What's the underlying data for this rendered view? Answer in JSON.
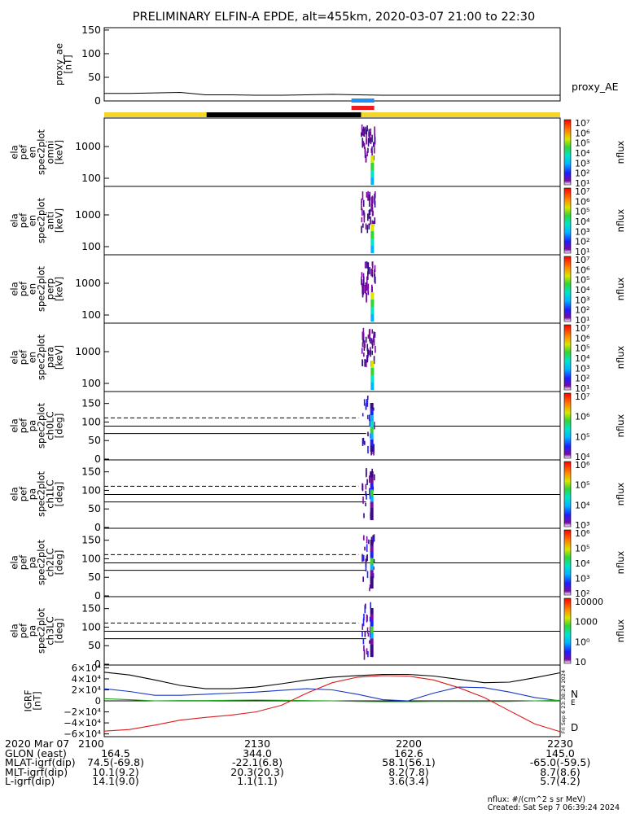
{
  "title": "PRELIMINARY ELFIN-A EPDE, alt=455km, 2020-03-07 21:00 to 22:30",
  "colors": {
    "yellow": "#f4d52a",
    "black": "#000000",
    "blue_bar": "#1e8ff0",
    "red_bar": "#ef1b1b",
    "igrf_n": "#1a35c8",
    "igrf_e": "#1ea31e",
    "igrf_d": "#dc1a1a",
    "igrf_total": "#000000"
  },
  "status_bars": {
    "segments": [
      {
        "from_min": 0,
        "to_min": 20.2,
        "color": "yellow"
      },
      {
        "from_min": 20.2,
        "to_min": 50.7,
        "color": "black"
      },
      {
        "from_min": 50.7,
        "to_min": 90,
        "color": "yellow"
      }
    ],
    "blue": {
      "from_min": 48.8,
      "to_min": 53.3
    },
    "red": {
      "from_min": 48.8,
      "to_min": 53.3
    }
  },
  "colorbar_labels": {
    "pef_en": [
      "10^7",
      "10^6",
      "10^5",
      "10^4",
      "10^3",
      "10^2",
      "10^1"
    ],
    "pef_pa0": [
      "10^7",
      "10^6",
      "10^5",
      "10^4"
    ],
    "pef_pa1": [
      "10^6",
      "10^5",
      "10^4",
      "10^3"
    ],
    "pef_pa2": [
      "10^6",
      "10^5",
      "10^4",
      "10^3",
      "10^2"
    ],
    "pef_pa3": [
      "10000",
      "1000",
      "100",
      "10"
    ]
  },
  "chart_data": [
    {
      "type": "line",
      "panel": "proxy_ae",
      "ylabel": "proxy_ae\n[nT]",
      "legend": "proxy_AE",
      "yticks": [
        "150",
        "100",
        "50",
        "0"
      ],
      "ylim": [
        0,
        155
      ],
      "x_min": [
        0,
        5,
        10,
        15,
        20,
        25,
        30,
        35,
        40,
        45,
        50,
        55,
        60,
        65,
        70,
        75,
        80,
        85,
        90
      ],
      "values": [
        16,
        16,
        17,
        18,
        13,
        13,
        12,
        12,
        13,
        14,
        13,
        12,
        12,
        12,
        12,
        12,
        12,
        12,
        12
      ]
    },
    {
      "type": "heatmap",
      "panel": "ela_pef_en_spec2plot_omni",
      "ylabel": "ela\npef\nen\nspec2plot\nomni\n[keV]",
      "yticks": [
        "1000",
        "100"
      ],
      "colorbar_title": "nflux",
      "event_window_min": [
        50.4,
        53.4
      ]
    },
    {
      "type": "heatmap",
      "panel": "ela_pef_en_spec2plot_anti",
      "ylabel": "ela\npef\nen\nspec2plot\nanti\n[keV]",
      "yticks": [
        "1000",
        "100"
      ],
      "colorbar_title": "nflux",
      "event_window_min": [
        50.4,
        53.4
      ]
    },
    {
      "type": "heatmap",
      "panel": "ela_pef_en_spec2plot_perp",
      "ylabel": "ela\npef\nen\nspec2plot\nperp\n[keV]",
      "yticks": [
        "1000",
        "100"
      ],
      "colorbar_title": "nflux",
      "event_window_min": [
        50.4,
        53.4
      ]
    },
    {
      "type": "heatmap",
      "panel": "ela_pef_en_spec2plot_para",
      "ylabel": "ela\npef\nen\nspec2plot\npara\n[keV]",
      "yticks": [
        "1000",
        "100"
      ],
      "colorbar_title": "nflux",
      "event_window_min": [
        50.4,
        53.4
      ]
    },
    {
      "type": "heatmap",
      "panel": "ela_pef_pa_spec2plot_ch0LC",
      "ylabel": "ela\npef\npa\nspec2plot\nch0LC\n[deg]",
      "yticks": [
        "150",
        "100",
        "50",
        "0"
      ],
      "ylim": [
        0,
        180
      ],
      "colorbar_title": "nflux",
      "lc_dashed_deg": 111,
      "lc_solid_upper_deg": 89,
      "lc_solid_lower_deg": 69
    },
    {
      "type": "heatmap",
      "panel": "ela_pef_pa_spec2plot_ch1LC",
      "ylabel": "ela\npef\npa\nspec2plot\nch1LC\n[deg]",
      "yticks": [
        "150",
        "100",
        "50",
        "0"
      ],
      "ylim": [
        0,
        180
      ],
      "colorbar_title": "nflux",
      "lc_dashed_deg": 111,
      "lc_solid_upper_deg": 89,
      "lc_solid_lower_deg": 69
    },
    {
      "type": "heatmap",
      "panel": "ela_pef_pa_spec2plot_ch2LC",
      "ylabel": "ela\npef\npa\nspec2plot\nch2LC\n[deg]",
      "yticks": [
        "150",
        "100",
        "50",
        "0"
      ],
      "ylim": [
        0,
        180
      ],
      "colorbar_title": "nflux",
      "lc_dashed_deg": 111,
      "lc_solid_upper_deg": 89,
      "lc_solid_lower_deg": 69
    },
    {
      "type": "heatmap",
      "panel": "ela_pef_pa_spec2plot_ch3LC",
      "ylabel": "ela\npef\npa\nspec2plot\nch3LC\n[deg]",
      "yticks": [
        "150",
        "100",
        "50",
        "0"
      ],
      "ylim": [
        0,
        180
      ],
      "colorbar_title": "nflux",
      "lc_dashed_deg": 111,
      "lc_solid_upper_deg": 89,
      "lc_solid_lower_deg": 69
    },
    {
      "type": "line",
      "panel": "IGRF",
      "ylabel": "IGRF\n[nT]",
      "yticks": [
        "6×10⁴",
        "4×10⁴",
        "2×10⁴",
        "0",
        "−2×10⁴",
        "−4×10⁴",
        "−6×10⁴"
      ],
      "ylim": [
        -65000,
        65000
      ],
      "x_min": [
        0,
        5,
        10,
        15,
        20,
        25,
        30,
        35,
        40,
        45,
        50,
        55,
        60,
        65,
        70,
        75,
        80,
        85,
        90
      ],
      "series": [
        {
          "name": "total",
          "color": "igrf_total",
          "values": [
            52000,
            47000,
            38000,
            28000,
            22000,
            22000,
            25000,
            31000,
            38000,
            43000,
            46000,
            48000,
            48000,
            45000,
            39000,
            33000,
            34000,
            42000,
            51000
          ]
        },
        {
          "name": "N",
          "color": "igrf_n",
          "values": [
            22000,
            17000,
            10000,
            10000,
            12000,
            14000,
            16000,
            19000,
            22000,
            20000,
            12000,
            2000,
            0,
            14000,
            25000,
            24000,
            16000,
            6000,
            0
          ]
        },
        {
          "name": "E",
          "color": "igrf_e",
          "values": [
            4000,
            2000,
            0,
            500,
            500,
            1000,
            1500,
            1000,
            500,
            0,
            -1000,
            -1500,
            -1500,
            -1000,
            -1000,
            -1000,
            -1000,
            0,
            1000
          ]
        },
        {
          "name": "D",
          "color": "igrf_d",
          "values": [
            -55000,
            -52000,
            -44000,
            -35000,
            -30000,
            -26000,
            -20000,
            -8000,
            14000,
            33000,
            43000,
            46000,
            45000,
            38000,
            24000,
            6000,
            -18000,
            -42000,
            -56000
          ]
        }
      ],
      "right_labels": [
        "N",
        "E",
        "D"
      ]
    }
  ],
  "time_axis": {
    "row_label": "2020 Mar 07",
    "ticks": [
      "2100",
      "2130",
      "2200",
      "2230"
    ],
    "tick_min": [
      0,
      30,
      60,
      90
    ]
  },
  "orbit_table": [
    {
      "label": "GLON (east)",
      "values": [
        "164.5",
        "344.0",
        "162.6",
        "145.0"
      ]
    },
    {
      "label": "MLAT-igrf(dip)",
      "values": [
        "74.5(-69.8)",
        "-22.1(6.8)",
        "58.1(56.1)",
        "-65.0(-59.5)"
      ]
    },
    {
      "label": "MLT-igrf(dip)",
      "values": "10.1(9.2)|20.3(20.3)|8.2(7.8)|8.7(8.6)"
    },
    {
      "label": "L-igrf(dip)",
      "values": [
        "14.1(9.0)",
        "1.1(1.1)",
        "3.6(3.4)",
        "5.7(4.2)"
      ]
    }
  ],
  "igrf_side_note": "Fri Sep  6 23:38:24 2024",
  "credits": {
    "units": "nflux: #/(cm^2 s sr MeV)",
    "created": "Created: Sat Sep  7 06:39:24 2024"
  }
}
